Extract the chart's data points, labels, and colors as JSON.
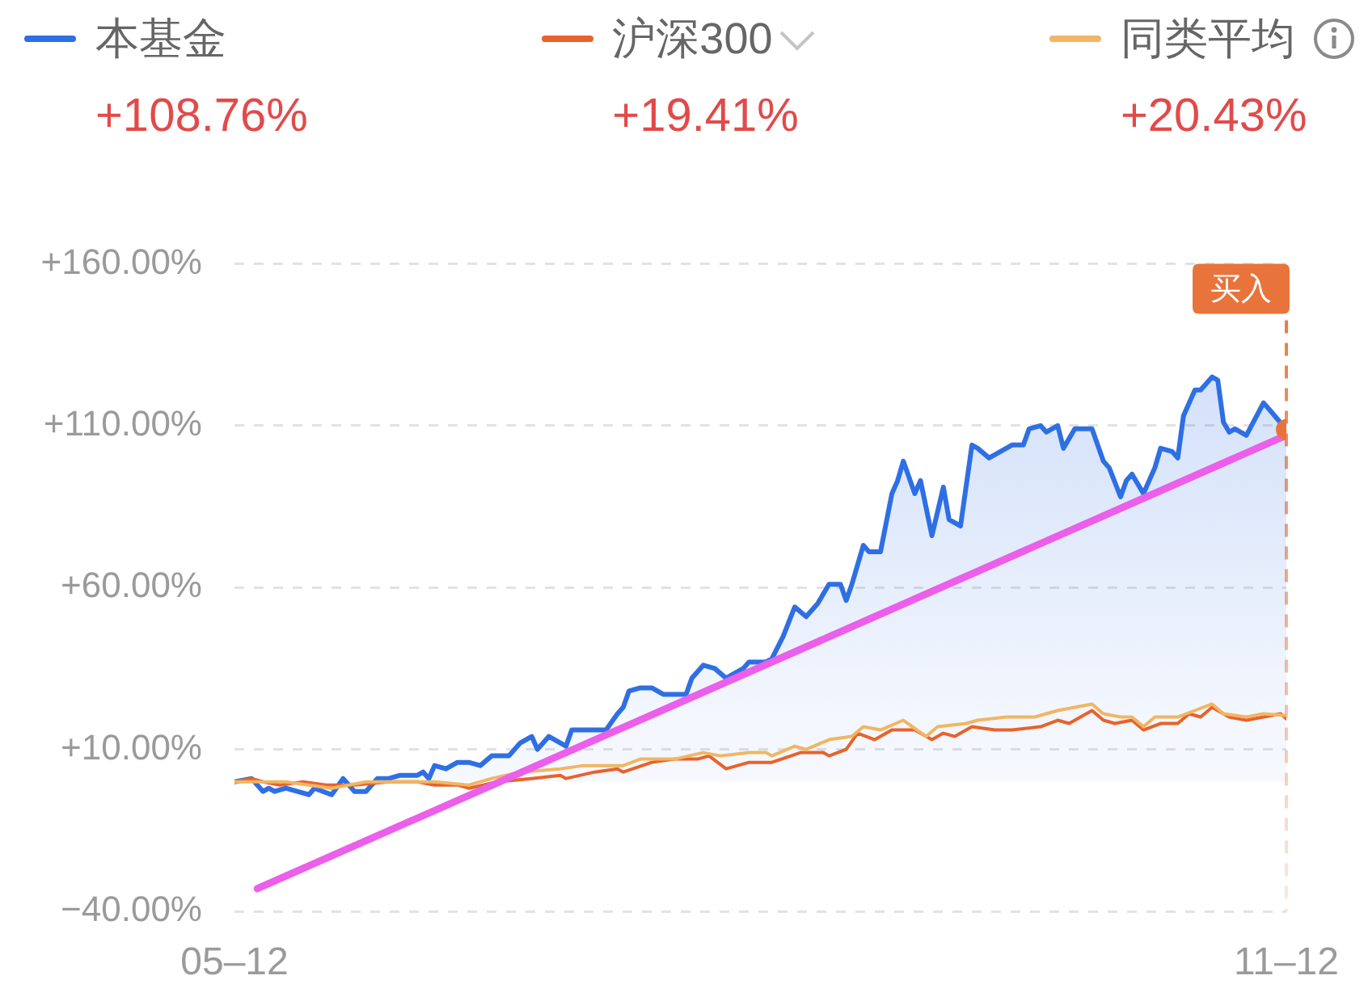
{
  "chart_data": {
    "type": "line",
    "legend": "top",
    "grid": "y",
    "xlim": [
      "--05-12",
      "--11-12"
    ],
    "xticks": [
      {
        "value": "--05-12",
        "label": "05–12"
      },
      {
        "value": "--11-12",
        "label": "11–12"
      }
    ],
    "ylim": [
      -40,
      160
    ],
    "yticks": [
      {
        "value": 160,
        "label": "+160.00%"
      },
      {
        "value": 110,
        "label": "+110.00%"
      },
      {
        "value": 60,
        "label": "+60.00%"
      },
      {
        "value": 10,
        "label": "+10.00%"
      },
      {
        "value": -40,
        "label": "−40.00%"
      }
    ],
    "annotations": [
      "+108.76%",
      "+19.41%",
      "+20.43%"
    ],
    "ref_lines": [
      {
        "axis": "x",
        "value": "--11-12",
        "label": "买入",
        "color": "#e8743b",
        "line_style": "dashed"
      }
    ],
    "series": [
      {
        "name": "本基金",
        "type": "area",
        "color": "#2f6fe4",
        "x": [
          "--05-12",
          "--05-15",
          "--05-17",
          "--05-18",
          "--05-19",
          "--05-21",
          "--05-23",
          "--05-25",
          "--05-26",
          "--05-29",
          "--05-31",
          "--06-02",
          "--06-04",
          "--06-06",
          "--06-08",
          "--06-10",
          "--06-13",
          "--06-14",
          "--06-15",
          "--06-16",
          "--06-18",
          "--06-20",
          "--06-22",
          "--06-24",
          "--06-26",
          "--06-28",
          "--06-29",
          "--07-01",
          "--07-03",
          "--07-04",
          "--07-06",
          "--07-08",
          "--07-09",
          "--07-10",
          "--07-13",
          "--07-16",
          "--07-18",
          "--07-19",
          "--07-20",
          "--07-22",
          "--07-24",
          "--07-26",
          "--07-30",
          "--07-31",
          "--08-02",
          "--08-04",
          "--08-06",
          "--08-09",
          "--08-10",
          "--08-13",
          "--08-14",
          "--08-16",
          "--08-18",
          "--08-20",
          "--08-22",
          "--08-24",
          "--08-26",
          "--08-27",
          "--08-28",
          "--08-30",
          "--08-31",
          "--09-02",
          "--09-04",
          "--09-05",
          "--09-06",
          "--09-08",
          "--09-09",
          "--09-11",
          "--09-13",
          "--09-14",
          "--09-16",
          "--09-18",
          "--09-19",
          "--09-21",
          "--09-23",
          "--09-25",
          "--09-27",
          "--09-28",
          "--09-30",
          "--10-01",
          "--10-03",
          "--10-04",
          "--10-06",
          "--10-09",
          "--10-11",
          "--10-12",
          "--10-14",
          "--10-15",
          "--10-16",
          "--10-18",
          "--10-20",
          "--10-21",
          "--10-23",
          "--10-24",
          "--10-25",
          "--10-27",
          "--10-28",
          "--10-30",
          "--10-31",
          "--11-01",
          "--11-02",
          "--11-03",
          "--11-05",
          "--11-08",
          "--11-09",
          "--11-12"
        ],
        "values": [
          0,
          1,
          -3,
          -2,
          -3,
          -2,
          -3,
          -4,
          -2,
          -4,
          1,
          -3,
          -3,
          1,
          1,
          2,
          2,
          3,
          1,
          5,
          4,
          6,
          6,
          5,
          8,
          8,
          8,
          12,
          14,
          10,
          14,
          12,
          11,
          16,
          16,
          16,
          21,
          23,
          28,
          29,
          29,
          27,
          27,
          32,
          36,
          35,
          32,
          35,
          37,
          37,
          38,
          45,
          54,
          51,
          55,
          61,
          61,
          56,
          61,
          73,
          71,
          71,
          89,
          93,
          99,
          89,
          93,
          76,
          91,
          81,
          79,
          104,
          103,
          100,
          102,
          104,
          104,
          109,
          110,
          108,
          110,
          103,
          109,
          109,
          99,
          97,
          88,
          93,
          95,
          89,
          97,
          103,
          102,
          100,
          113,
          121,
          121,
          125,
          124,
          111,
          108,
          109,
          107,
          117,
          115,
          108.76
        ]
      },
      {
        "name": "沪深300",
        "type": "line",
        "color": "#e8622c",
        "x": [
          "--05-12",
          "--05-15",
          "--05-17",
          "--05-20",
          "--05-24",
          "--05-28",
          "--06-02",
          "--06-08",
          "--06-13",
          "--06-16",
          "--06-20",
          "--06-22",
          "--06-27",
          "--07-03",
          "--07-08",
          "--07-09",
          "--07-14",
          "--07-18",
          "--07-19",
          "--07-24",
          "--07-28",
          "--08-01",
          "--08-03",
          "--08-06",
          "--08-10",
          "--08-14",
          "--08-19",
          "--08-23",
          "--08-24",
          "--08-27",
          "--08-29",
          "--09-01",
          "--09-04",
          "--09-08",
          "--09-11",
          "--09-13",
          "--09-15",
          "--09-18",
          "--09-22",
          "--09-25",
          "--09-30",
          "--10-03",
          "--10-05",
          "--10-09",
          "--10-11",
          "--10-13",
          "--10-16",
          "--10-18",
          "--10-21",
          "--10-24",
          "--10-26",
          "--10-28",
          "--10-30",
          "--11-02",
          "--11-05",
          "--11-08",
          "--11-11",
          "--11-12"
        ],
        "values": [
          0,
          1,
          0,
          -1,
          0,
          -1,
          -1,
          0,
          0,
          -1,
          -1,
          -2,
          0,
          1,
          2,
          1,
          3,
          4,
          3,
          6,
          7,
          7,
          8,
          4,
          6,
          6,
          9,
          9,
          8,
          10,
          15,
          13,
          16,
          16,
          13,
          15,
          14,
          17,
          16,
          16,
          17,
          19,
          18,
          22,
          19,
          18,
          19,
          16,
          18,
          18,
          21,
          20,
          23,
          20,
          19,
          20,
          21,
          19.41
        ]
      },
      {
        "name": "同类平均",
        "type": "line",
        "color": "#f0b663",
        "x": [
          "--05-12",
          "--05-21",
          "--05-29",
          "--06-04",
          "--06-11",
          "--06-16",
          "--06-22",
          "--06-26",
          "--07-01",
          "--07-08",
          "--07-12",
          "--07-19",
          "--07-22",
          "--07-28",
          "--08-02",
          "--08-05",
          "--08-10",
          "--08-13",
          "--08-14",
          "--08-18",
          "--08-20",
          "--08-24",
          "--08-28",
          "--08-30",
          "--09-02",
          "--09-06",
          "--09-10",
          "--09-12",
          "--09-17",
          "--09-19",
          "--09-24",
          "--09-29",
          "--10-03",
          "--10-09",
          "--10-11",
          "--10-14",
          "--10-16",
          "--10-18",
          "--10-20",
          "--10-24",
          "--10-27",
          "--10-30",
          "--11-01",
          "--11-05",
          "--11-08",
          "--11-12"
        ],
        "values": [
          0,
          0,
          -2,
          0,
          0,
          0,
          -1,
          1,
          3,
          4,
          5,
          5,
          7,
          7,
          9,
          8,
          9,
          9,
          8,
          11,
          10,
          13,
          14,
          17,
          16,
          19,
          14,
          17,
          18,
          19,
          20,
          20,
          22,
          24,
          21,
          20,
          20,
          17,
          20,
          20,
          22,
          24,
          21,
          20,
          21,
          20.43
        ]
      },
      {
        "type": "line",
        "color": "#eb5fea",
        "x": [
          "--05-16",
          "--11-12"
        ],
        "values": [
          -33,
          107
        ]
      },
      {
        "type": "scatter",
        "marker": "circle",
        "color": "#e8743b",
        "x": [
          "--11-12"
        ],
        "values": [
          108.76
        ]
      }
    ]
  }
}
